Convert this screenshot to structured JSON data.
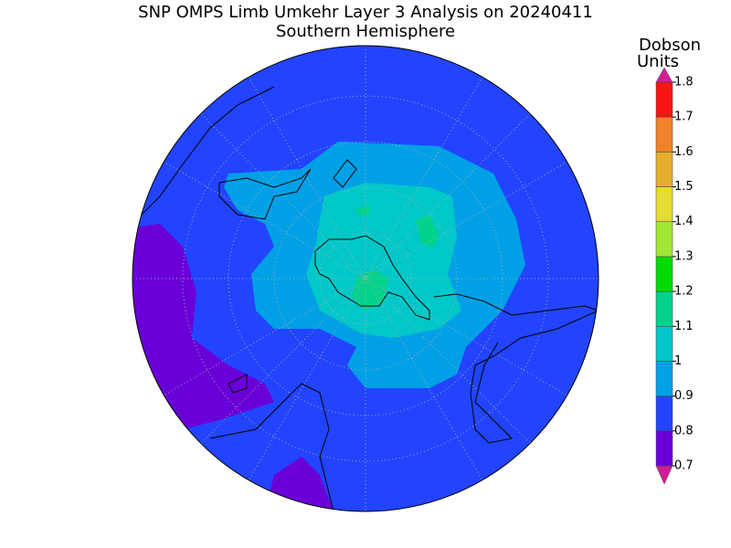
{
  "header": {
    "title": "SNP OMPS Limb Umkehr Layer 3 Analysis on 20240411",
    "subtitle": "Southern Hemisphere"
  },
  "colorbar": {
    "label_lines": [
      "Dobson",
      "Units"
    ],
    "ticks": [
      0.7,
      0.8,
      0.9,
      1,
      1.1,
      1.2,
      1.3,
      1.4,
      1.5,
      1.6,
      1.7,
      1.8
    ],
    "colors": [
      "#6a00d8",
      "#2244ff",
      "#00a0e6",
      "#00c8c8",
      "#00d28c",
      "#00dc00",
      "#a0e632",
      "#e6dc32",
      "#e6af2d",
      "#f08228",
      "#fa1414"
    ]
  }
}
